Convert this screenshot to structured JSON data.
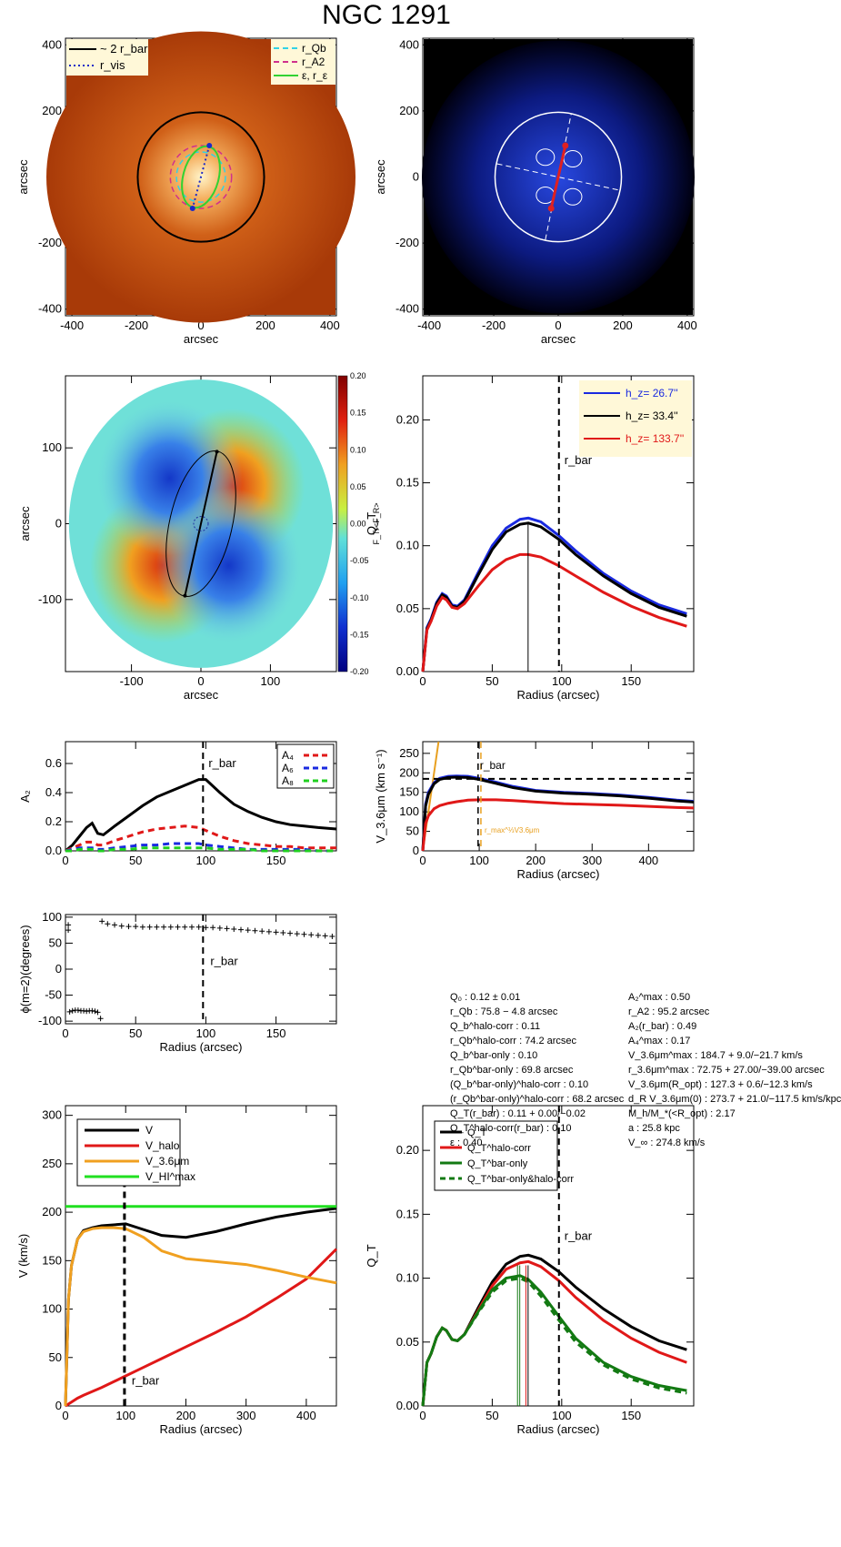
{
  "figure_title": "NGC 1291",
  "params_left": [
    "Q₀ :  0.12 ± 0.01",
    "r_Qb :  75.8 − 4.8 arcsec",
    "Q_b^halo-corr :  0.11",
    "r_Qb^halo-corr :  74.2 arcsec",
    "Q_b^bar-only :  0.10",
    "r_Qb^bar-only :  69.8 arcsec",
    "(Q_b^bar-only)^halo-corr :  0.10",
    "(r_Qb^bar-only)^halo-corr :  68.2 arcsec",
    "Q_T(r_bar) :  0.11 + 0.00/−0.02",
    "Q_T^halo-corr(r_bar) :  0.10",
    "ε :  0.40"
  ],
  "params_right": [
    "A₂^max :  0.50",
    "r_A2 :  95.2 arcsec",
    "A₂(r_bar) :  0.49",
    "A₄^max :  0.17",
    "V_3.6μm^max :  184.7 + 9.0/−21.7 km/s",
    "r_3.6μm^max :  72.75 + 27.00/−39.00 arcsec",
    "V_3.6μm(R_opt) :  127.3 + 0.6/−12.3 km/s",
    "d_R V_3.6μm(0) :  273.7 + 21.0/−117.5 km/s/kpc",
    "M_h/M_*(<R_opt) :  2.17",
    "a :  25.8 kpc",
    "V_∞ :  274.8 km/s"
  ],
  "chart_data": [
    {
      "id": "panel1_image",
      "type": "heatmap",
      "description_labels": {
        "xlabel": "arcsec",
        "ylabel": "arcsec"
      },
      "xlim": [
        -420,
        420
      ],
      "ylim": [
        -420,
        420
      ],
      "xticks": [
        -400,
        -200,
        0,
        200,
        400
      ],
      "yticks": [
        -400,
        -200,
        0,
        200,
        400
      ],
      "legend_left": [
        "~ 2 r_bar",
        "r_vis"
      ],
      "legend_right": [
        "r_Qb",
        "r_A2",
        "ε, r_ε"
      ],
      "colors": {
        "bg": "#a83a08",
        "core": "#fff4c8",
        "circle": "#000000",
        "rvis": "#1b2ac8",
        "rQb": "#32d2e6",
        "rA2": "#d0308c",
        "eps": "#32d232"
      },
      "two_rbar_radius": 196,
      "rvis_endpoints": [
        [
          26,
          95
        ],
        [
          -26,
          -95
        ]
      ]
    },
    {
      "id": "panel2_residual",
      "type": "heatmap",
      "description_labels": {
        "xlabel": "arcsec",
        "ylabel": "arcsec"
      },
      "xlim": [
        -420,
        420
      ],
      "ylim": [
        -420,
        420
      ],
      "xticks": [
        -400,
        -200,
        0,
        200,
        400
      ],
      "yticks": [
        -400,
        -200,
        0,
        200,
        400
      ],
      "colors": {
        "bg": "#000000",
        "disk": "#1a2fa0",
        "circle": "#ffffff",
        "bar": "#e02020"
      },
      "circle_radius": 196
    },
    {
      "id": "panel3_forcemap",
      "type": "heatmap",
      "xlabel": "arcsec",
      "ylabel": "arcsec",
      "colorbar_label": "F_T/<F_R>",
      "xlim": [
        -195,
        195
      ],
      "ylim": [
        -195,
        195
      ],
      "xticks": [
        -100,
        0,
        100
      ],
      "yticks": [
        -100,
        0,
        100
      ],
      "colorbar_ticks": [
        0.2,
        0.15,
        0.1,
        0.05,
        0.0,
        -0.05,
        -0.1,
        -0.15,
        -0.2
      ],
      "colorbar_labels": [
        "0.20",
        "0.15",
        "0.10",
        "0.05",
        "0.00",
        "-0.05",
        "-0.10",
        "-0.15",
        "-0.20"
      ]
    },
    {
      "id": "panel4_QT",
      "type": "line",
      "xlabel": "Radius (arcsec)",
      "ylabel": "Q_T",
      "xlim": [
        0,
        195
      ],
      "ylim": [
        0,
        0.235
      ],
      "xticks": [
        0,
        50,
        100,
        150
      ],
      "yticks": [
        0.0,
        0.05,
        0.1,
        0.15,
        0.2
      ],
      "ytick_labels": [
        "0.00",
        "0.05",
        "0.10",
        "0.15",
        "0.20"
      ],
      "annotation": "r_bar",
      "rbar": 98,
      "qb_line_x": 75.8,
      "legend": [
        "h_z=  26.7''",
        "h_z=  33.4''",
        "h_z= 133.7''"
      ],
      "x": [
        0,
        3,
        6,
        10,
        14,
        17,
        21,
        25,
        30,
        40,
        50,
        60,
        70,
        76,
        85,
        98,
        110,
        130,
        150,
        170,
        190
      ],
      "series": [
        {
          "name": "h_z=  26.7''",
          "color": "#1a2ae0",
          "values": [
            0,
            0.035,
            0.042,
            0.055,
            0.062,
            0.06,
            0.053,
            0.052,
            0.057,
            0.079,
            0.1,
            0.114,
            0.121,
            0.122,
            0.119,
            0.108,
            0.096,
            0.078,
            0.064,
            0.053,
            0.046
          ]
        },
        {
          "name": "h_z=  33.4''",
          "color": "#000000",
          "values": [
            0,
            0.034,
            0.041,
            0.054,
            0.061,
            0.059,
            0.052,
            0.051,
            0.056,
            0.077,
            0.097,
            0.111,
            0.117,
            0.118,
            0.115,
            0.105,
            0.093,
            0.076,
            0.062,
            0.051,
            0.044
          ]
        },
        {
          "name": "h_z= 133.7''",
          "color": "#e01818",
          "values": [
            0,
            0.033,
            0.04,
            0.052,
            0.059,
            0.057,
            0.051,
            0.05,
            0.054,
            0.068,
            0.081,
            0.089,
            0.093,
            0.093,
            0.091,
            0.084,
            0.076,
            0.063,
            0.052,
            0.043,
            0.036
          ]
        }
      ]
    },
    {
      "id": "panel5_A2",
      "type": "line",
      "xlabel": "",
      "ylabel": "A₂",
      "xlim": [
        0,
        193
      ],
      "ylim": [
        0,
        0.75
      ],
      "xticks": [
        0,
        50,
        100,
        150
      ],
      "yticks": [
        0.0,
        0.2,
        0.4,
        0.6
      ],
      "xtick_labels": [
        "0",
        "50",
        "100",
        "150"
      ],
      "ytick_labels": [
        "0.0",
        "0.2",
        "0.4",
        "0.6"
      ],
      "annotation": "r_bar",
      "rbar": 98,
      "legend": [
        "A₄",
        "A₆",
        "A₈"
      ],
      "x": [
        0,
        5,
        10,
        15,
        19,
        23,
        27,
        35,
        45,
        55,
        65,
        75,
        85,
        95,
        100,
        110,
        120,
        130,
        140,
        150,
        160,
        170,
        180,
        193
      ],
      "series": [
        {
          "name": "A2",
          "color": "#000000",
          "dash": false,
          "values": [
            0.0,
            0.04,
            0.1,
            0.16,
            0.19,
            0.12,
            0.11,
            0.17,
            0.24,
            0.31,
            0.37,
            0.41,
            0.45,
            0.49,
            0.49,
            0.4,
            0.32,
            0.27,
            0.23,
            0.2,
            0.18,
            0.17,
            0.16,
            0.15
          ]
        },
        {
          "name": "A₄",
          "color": "#e01818",
          "dash": true,
          "values": [
            0.0,
            0.02,
            0.04,
            0.06,
            0.06,
            0.04,
            0.04,
            0.07,
            0.1,
            0.13,
            0.15,
            0.16,
            0.17,
            0.16,
            0.14,
            0.1,
            0.07,
            0.05,
            0.04,
            0.03,
            0.03,
            0.02,
            0.02,
            0.02
          ]
        },
        {
          "name": "A₆",
          "color": "#1a2ae0",
          "dash": true,
          "values": [
            0.0,
            0.01,
            0.02,
            0.02,
            0.02,
            0.01,
            0.01,
            0.02,
            0.03,
            0.04,
            0.04,
            0.05,
            0.05,
            0.05,
            0.04,
            0.03,
            0.02,
            0.01,
            0.01,
            0.01,
            0.01,
            0.01,
            0.0,
            0.0
          ]
        },
        {
          "name": "A₈",
          "color": "#20d020",
          "dash": true,
          "values": [
            0.0,
            0.0,
            0.01,
            0.01,
            0.01,
            0.0,
            0.0,
            0.01,
            0.01,
            0.02,
            0.02,
            0.02,
            0.02,
            0.02,
            0.02,
            0.01,
            0.01,
            0.01,
            0.0,
            0.0,
            0.0,
            0.0,
            0.0,
            0.0
          ]
        }
      ]
    },
    {
      "id": "panel6_V36",
      "type": "line",
      "xlabel": "Radius (arcsec)",
      "ylabel": "V_3.6μm (km s⁻¹)",
      "xlim": [
        0,
        480
      ],
      "ylim": [
        0,
        280
      ],
      "xticks": [
        0,
        100,
        200,
        300,
        400
      ],
      "yticks": [
        0,
        50,
        100,
        150,
        200,
        250
      ],
      "annotation": "r_bar",
      "annotation2": "r_max^⅓V3.6μm",
      "rbar": 98,
      "rmax": 103,
      "hline": 184.7,
      "x": [
        0,
        5,
        10,
        20,
        30,
        45,
        60,
        80,
        100,
        130,
        160,
        200,
        250,
        300,
        350,
        400,
        450,
        480
      ],
      "series": [
        {
          "name": "blue",
          "color": "#1a2ae0",
          "values": [
            0,
            120,
            150,
            175,
            186,
            191,
            192,
            191,
            186,
            176,
            165,
            155,
            150,
            147,
            143,
            137,
            130,
            127
          ]
        },
        {
          "name": "black",
          "color": "#000000",
          "values": [
            0,
            115,
            145,
            172,
            183,
            188,
            189,
            188,
            183,
            173,
            162,
            153,
            148,
            145,
            141,
            135,
            128,
            125
          ]
        },
        {
          "name": "red",
          "color": "#e01818",
          "values": [
            0,
            70,
            90,
            108,
            116,
            122,
            126,
            130,
            131,
            131,
            129,
            125,
            121,
            119,
            117,
            114,
            111,
            110
          ]
        }
      ],
      "rising_line": {
        "color": "#e8a020",
        "x": [
          0,
          28
        ],
        "y": [
          0,
          280
        ]
      }
    },
    {
      "id": "panel7_phase",
      "type": "scatter",
      "xlabel": "Radius (arcsec)",
      "ylabel": "ϕ(m=2)(degrees)",
      "xlim": [
        0,
        193
      ],
      "ylim": [
        -105,
        105
      ],
      "xticks": [
        0,
        50,
        100,
        150
      ],
      "yticks": [
        -100,
        -50,
        0,
        50,
        100
      ],
      "annotation": "r_bar",
      "rbar": 98,
      "x_inner": [
        3,
        5,
        7,
        9,
        11,
        13,
        15,
        17,
        19,
        21,
        23,
        25
      ],
      "y_inner": [
        -82,
        -80,
        -79,
        -79,
        -80,
        -80,
        -81,
        -80,
        -80,
        -81,
        -83,
        -95
      ],
      "x_outer": [
        26,
        30,
        35,
        40,
        45,
        50,
        55,
        60,
        65,
        70,
        75,
        80,
        85,
        90,
        95,
        100,
        105,
        110,
        115,
        120,
        125,
        130,
        135,
        140,
        145,
        150,
        155,
        160,
        165,
        170,
        175,
        180,
        185,
        190
      ],
      "y_outer": [
        92,
        87,
        85,
        83,
        82,
        82,
        81,
        81,
        81,
        81,
        81,
        81,
        81,
        81,
        81,
        80,
        80,
        79,
        78,
        77,
        76,
        75,
        74,
        73,
        72,
        71,
        70,
        69,
        68,
        67,
        66,
        65,
        64,
        63
      ],
      "extra": [
        [
          2,
          85
        ],
        [
          2,
          75
        ]
      ]
    },
    {
      "id": "panel8_Vhalo",
      "type": "line",
      "xlabel": "Radius (arcsec)",
      "ylabel": "V (km/s)",
      "xlim": [
        0,
        450
      ],
      "ylim": [
        0,
        310
      ],
      "xticks": [
        0,
        100,
        200,
        300,
        400
      ],
      "yticks": [
        0,
        50,
        100,
        150,
        200,
        250,
        300
      ],
      "annotation": "r_bar",
      "rbar": 98,
      "hline": 206,
      "legend": [
        "V",
        "V_halo",
        "V_3.6μm",
        "V_HI^max"
      ],
      "x": [
        0,
        5,
        10,
        20,
        30,
        45,
        60,
        80,
        100,
        130,
        160,
        200,
        250,
        300,
        350,
        400,
        450
      ],
      "series": [
        {
          "name": "V",
          "color": "#000000",
          "values": [
            0,
            110,
            145,
            172,
            181,
            184,
            186,
            187,
            188,
            182,
            176,
            174,
            180,
            188,
            195,
            200,
            204
          ]
        },
        {
          "name": "V_halo",
          "color": "#e01818",
          "values": [
            0,
            2,
            4,
            8,
            11,
            15,
            19,
            25,
            31,
            40,
            49,
            61,
            76,
            92,
            111,
            131,
            162
          ]
        },
        {
          "name": "V_3.6μm",
          "color": "#f0a020",
          "values": [
            0,
            110,
            145,
            172,
            180,
            183,
            184,
            184,
            183,
            174,
            160,
            152,
            149,
            146,
            140,
            133,
            127
          ]
        },
        {
          "name": "V_HI^max",
          "color": "#20e020",
          "values": [
            206,
            206,
            206,
            206,
            206,
            206,
            206,
            206,
            206,
            206,
            206,
            206,
            206,
            206,
            206,
            206,
            206
          ]
        }
      ]
    },
    {
      "id": "panel9_QTcorr",
      "type": "line",
      "xlabel": "Radius (arcsec)",
      "ylabel": "Q_T",
      "xlim": [
        0,
        195
      ],
      "ylim": [
        0,
        0.235
      ],
      "xticks": [
        0,
        50,
        100,
        150
      ],
      "yticks": [
        0.0,
        0.05,
        0.1,
        0.15,
        0.2
      ],
      "ytick_labels": [
        "0.00",
        "0.05",
        "0.10",
        "0.15",
        "0.20"
      ],
      "annotation": "r_bar",
      "rbar": 98,
      "legend": [
        "Q_T",
        "Q_T^halo-corr",
        "Q_T^bar-only",
        "Q_T^bar-only&halo-corr"
      ],
      "x": [
        0,
        3,
        6,
        10,
        14,
        17,
        21,
        25,
        30,
        40,
        50,
        60,
        70,
        76,
        85,
        98,
        110,
        130,
        150,
        170,
        190
      ],
      "series": [
        {
          "name": "Q_T",
          "color": "#000000",
          "dash": false,
          "values": [
            0,
            0.034,
            0.041,
            0.054,
            0.061,
            0.059,
            0.052,
            0.051,
            0.056,
            0.077,
            0.097,
            0.111,
            0.117,
            0.118,
            0.115,
            0.105,
            0.093,
            0.076,
            0.062,
            0.051,
            0.044
          ]
        },
        {
          "name": "Q_T^halo-corr",
          "color": "#e01818",
          "dash": false,
          "values": [
            0,
            0.034,
            0.041,
            0.054,
            0.061,
            0.059,
            0.052,
            0.051,
            0.056,
            0.075,
            0.094,
            0.107,
            0.112,
            0.113,
            0.109,
            0.098,
            0.085,
            0.067,
            0.053,
            0.042,
            0.034
          ]
        },
        {
          "name": "Q_T^bar-only",
          "color": "#137a13",
          "dash": false,
          "values": [
            0,
            0.034,
            0.041,
            0.054,
            0.061,
            0.059,
            0.052,
            0.051,
            0.056,
            0.074,
            0.091,
            0.1,
            0.102,
            0.099,
            0.089,
            0.07,
            0.053,
            0.034,
            0.023,
            0.016,
            0.012
          ]
        },
        {
          "name": "Q_T^bar-only&halo-corr",
          "color": "#137a13",
          "dash": true,
          "values": [
            0,
            0.034,
            0.041,
            0.054,
            0.061,
            0.059,
            0.052,
            0.051,
            0.056,
            0.073,
            0.089,
            0.098,
            0.1,
            0.097,
            0.086,
            0.067,
            0.05,
            0.032,
            0.021,
            0.014,
            0.01
          ]
        }
      ],
      "vlines": [
        {
          "x": 69.8,
          "color": "#137a13"
        },
        {
          "x": 68.2,
          "color": "#137a13"
        },
        {
          "x": 74.2,
          "color": "#e01818"
        },
        {
          "x": 75.8,
          "color": "#000000"
        }
      ]
    }
  ]
}
